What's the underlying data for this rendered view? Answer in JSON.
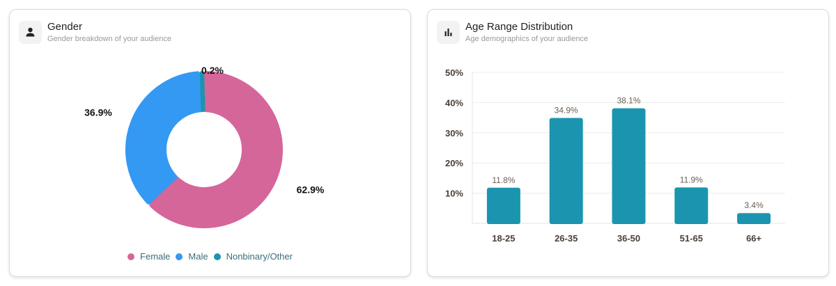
{
  "gender_card": {
    "title": "Gender",
    "subtitle": "Gender breakdown of your audience",
    "icon": "person-icon"
  },
  "age_card": {
    "title": "Age Range Distribution",
    "subtitle": "Age demographics of your audience",
    "icon": "bar-chart-icon"
  },
  "colors": {
    "female": "#d5669a",
    "male": "#3399f3",
    "nonbinary": "#1b95af",
    "bar": "#1b95af"
  },
  "chart_data": [
    {
      "type": "pie",
      "title": "Gender",
      "categories": [
        "Female",
        "Male",
        "Nonbinary/Other"
      ],
      "values": [
        62.9,
        36.9,
        0.2
      ],
      "labels": [
        "62.9%",
        "36.9%",
        "0.2%"
      ],
      "legend": "bottom"
    },
    {
      "type": "bar",
      "title": "Age Range Distribution",
      "categories": [
        "18-25",
        "26-35",
        "36-50",
        "51-65",
        "66+"
      ],
      "values": [
        11.8,
        34.9,
        38.1,
        11.9,
        3.4
      ],
      "labels": [
        "11.8%",
        "34.9%",
        "38.1%",
        "11.9%",
        "3.4%"
      ],
      "yticks": [
        "10%",
        "20%",
        "30%",
        "40%",
        "50%"
      ],
      "ylim": [
        0,
        50
      ],
      "grid": true
    }
  ]
}
